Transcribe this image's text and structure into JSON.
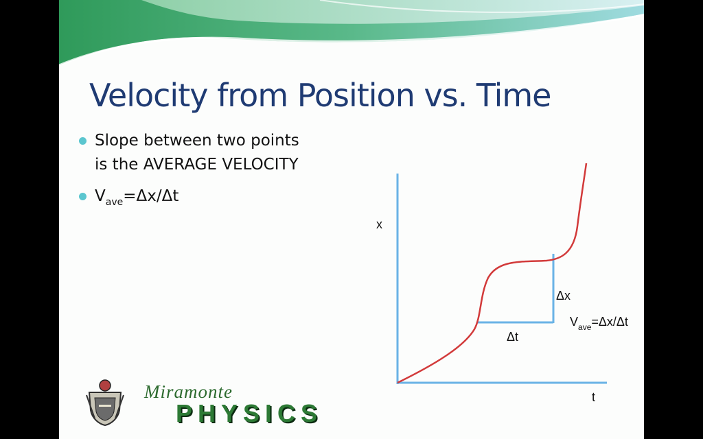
{
  "title": "Velocity from Position vs. Time",
  "bullets": [
    {
      "line1": "Slope between two points",
      "line2": "is the AVERAGE VELOCITY"
    },
    {
      "prefix": "V",
      "sub": "ave",
      "rest": "=Δx/Δt"
    }
  ],
  "diagram": {
    "y_axis_label": "x",
    "x_axis_label": "t",
    "delta_x_label": "Δx",
    "delta_t_label": "Δt",
    "formula": {
      "prefix": "V",
      "sub": "ave",
      "rest": "=Δx/Δt"
    },
    "curve_color": "#d23a3a",
    "axis_color": "#6ab3e6"
  },
  "logo": {
    "line1": "Miramonte",
    "line2": "PHYSICS"
  },
  "colors": {
    "title": "#1f3b73",
    "bullet": "#5bc6cf",
    "logo_green": "#2d7a35"
  }
}
